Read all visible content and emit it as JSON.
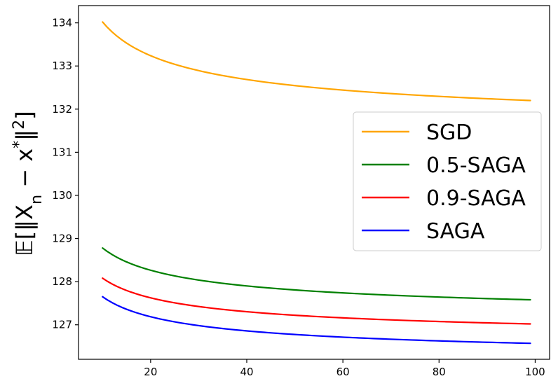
{
  "chart_data": {
    "type": "line",
    "title": "",
    "xlabel": "",
    "ylabel": "𝔼[‖X_n − x*‖²]",
    "ylabel_parts": {
      "prefix": "𝔼[‖X",
      "sub": "n",
      "mid": " − x",
      "sup1": "*",
      "close": "‖",
      "sup2": "2",
      "end": "]"
    },
    "xlim": [
      5,
      103
    ],
    "ylim": [
      126.2,
      134.4
    ],
    "xticks": [
      20,
      40,
      60,
      80,
      100
    ],
    "yticks": [
      127,
      128,
      129,
      130,
      131,
      132,
      133,
      134
    ],
    "grid": false,
    "legend_position": "right",
    "x_range": [
      10,
      99
    ],
    "series": [
      {
        "name": "SGD",
        "color": "#ffa500",
        "y_start": 134.02,
        "y_end": 132.2
      },
      {
        "name": "0.5-SAGA",
        "color": "#008000",
        "y_start": 128.78,
        "y_end": 127.58
      },
      {
        "name": "0.9-SAGA",
        "color": "#ff0000",
        "y_start": 128.08,
        "y_end": 127.02
      },
      {
        "name": "SAGA",
        "color": "#0000ff",
        "y_start": 127.65,
        "y_end": 126.57
      }
    ]
  }
}
